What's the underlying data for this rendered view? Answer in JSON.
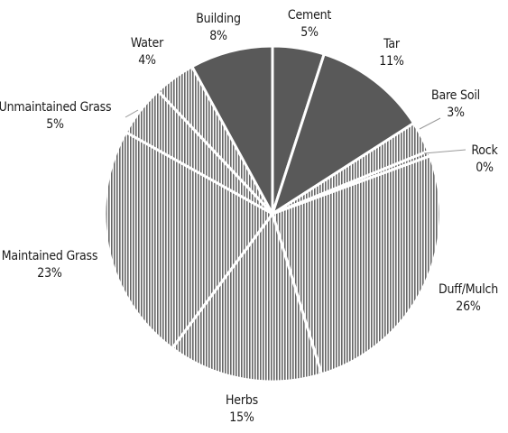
{
  "chart_data": {
    "type": "pie",
    "start_angle_deg": 0,
    "direction": "clockwise",
    "slices": [
      {
        "label": "Cement",
        "percent_label": "5%",
        "value": 5,
        "fill": "solid"
      },
      {
        "label": "Tar",
        "percent_label": "11%",
        "value": 11,
        "fill": "solid"
      },
      {
        "label": "Bare Soil",
        "percent_label": "3%",
        "value": 3,
        "fill": "striped"
      },
      {
        "label": "Rock",
        "percent_label": "0%",
        "value": 0.5,
        "fill": "striped"
      },
      {
        "label": "Duff/Mulch",
        "percent_label": "26%",
        "value": 26,
        "fill": "striped"
      },
      {
        "label": "Herbs",
        "percent_label": "15%",
        "value": 15,
        "fill": "striped"
      },
      {
        "label": "Maintained Grass",
        "percent_label": "23%",
        "value": 23,
        "fill": "striped"
      },
      {
        "label": "Unmaintained Grass",
        "percent_label": "5%",
        "value": 5,
        "fill": "striped"
      },
      {
        "label": "Water",
        "percent_label": "4%",
        "value": 4,
        "fill": "striped"
      },
      {
        "label": "Building",
        "percent_label": "8%",
        "value": 8,
        "fill": "solid"
      }
    ],
    "colors": {
      "solid": "#595959",
      "stripe_dark": "#666666",
      "stripe_light": "#ffffff",
      "separator": "#ffffff",
      "label_text": "#1a1a1a",
      "leader_line": "#999999"
    }
  }
}
